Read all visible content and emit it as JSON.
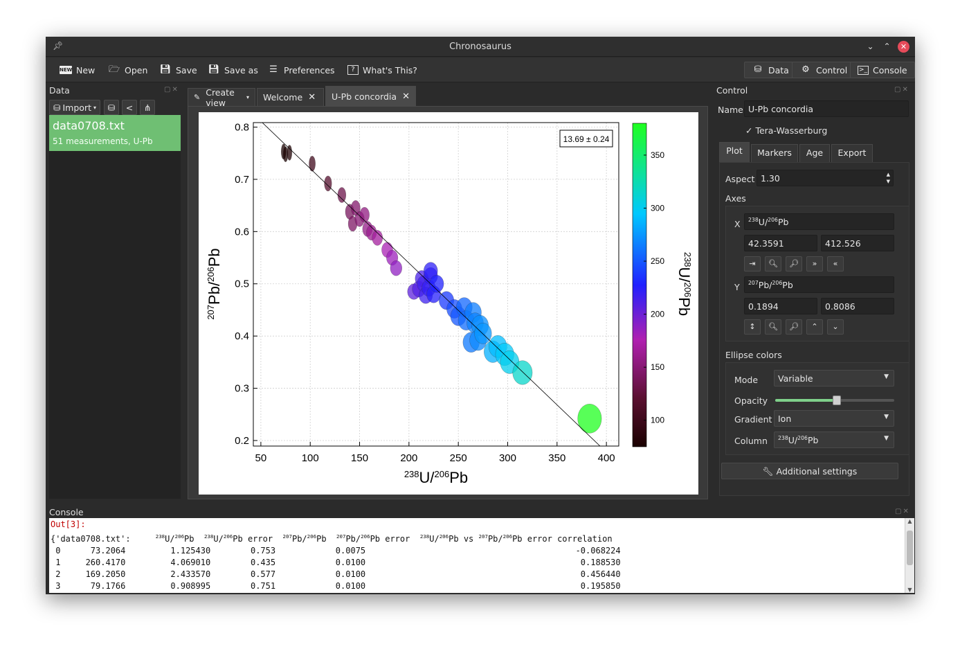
{
  "window": {
    "title": "Chronosaurus"
  },
  "toolbar": {
    "new": "New",
    "open": "Open",
    "save": "Save",
    "save_as": "Save as",
    "preferences": "Preferences",
    "whats_this": "What's This?",
    "data": "Data",
    "control": "Control",
    "console": "Console"
  },
  "data_panel": {
    "title": "Data",
    "import": "Import",
    "items": [
      {
        "name": "data0708.txt",
        "subtitle": "51 measurements, U-Pb"
      }
    ]
  },
  "tabs": [
    {
      "label": "Create view"
    },
    {
      "label": "Welcome"
    },
    {
      "label": "U-Pb concordia"
    }
  ],
  "control": {
    "title": "Control",
    "name_label": "Name",
    "name_value": "U-Pb concordia",
    "tera_wasserburg": "Tera-Wasserburg",
    "tabs": [
      "Plot",
      "Markers",
      "Age",
      "Export"
    ],
    "aspect_label": "Aspect",
    "aspect_value": "1.30",
    "axes_label": "Axes",
    "x_label": "X",
    "x_min": "42.3591",
    "x_max": "412.526",
    "y_label": "Y",
    "y_min": "0.1894",
    "y_max": "0.8086",
    "ellipse_colors": "Ellipse colors",
    "mode_label": "Mode",
    "mode_value": "Variable",
    "opacity_label": "Opacity",
    "opacity_value": 0.52,
    "gradient_label": "Gradient",
    "gradient_value": "Ion",
    "column_label": "Column",
    "additional_settings": "Additional settings"
  },
  "console": {
    "title": "Console",
    "prompt": "Out[3]:",
    "lines": [
      " 0      73.2064         1.125430        0.753            0.0075                                          -0.068224",
      " 1     260.4170         4.069010        0.435            0.0100                                           0.188530",
      " 2     169.2050         2.433570        0.577            0.0100                                           0.456440",
      " 3      79.1766         0.908995        0.751            0.0100                                           0.195850"
    ]
  },
  "chart_data": {
    "type": "scatter",
    "annotation": "13.69 ± 0.24",
    "xlim": [
      42.3591,
      412.526
    ],
    "ylim": [
      0.1894,
      0.8086
    ],
    "xticks": [
      50,
      100,
      150,
      200,
      250,
      300,
      350,
      400
    ],
    "yticks": [
      0.2,
      0.3,
      0.4,
      0.5,
      0.6,
      0.7,
      0.8
    ],
    "colorbar_ticks": [
      100,
      150,
      200,
      250,
      300,
      350
    ],
    "colorbar_range": [
      75,
      380
    ],
    "grid": true,
    "concordia_line": {
      "x": [
        42.3591,
        412.526
      ],
      "y": [
        0.825,
        0.155
      ]
    },
    "points": [
      {
        "x": 73,
        "y": 0.753,
        "c": 73
      },
      {
        "x": 75,
        "y": 0.748,
        "c": 75
      },
      {
        "x": 79,
        "y": 0.751,
        "c": 79
      },
      {
        "x": 102,
        "y": 0.73,
        "c": 102
      },
      {
        "x": 118,
        "y": 0.692,
        "c": 118
      },
      {
        "x": 132,
        "y": 0.67,
        "c": 132
      },
      {
        "x": 140,
        "y": 0.638,
        "c": 140
      },
      {
        "x": 143,
        "y": 0.615,
        "c": 143
      },
      {
        "x": 146,
        "y": 0.645,
        "c": 146
      },
      {
        "x": 150,
        "y": 0.624,
        "c": 150
      },
      {
        "x": 155,
        "y": 0.632,
        "c": 155
      },
      {
        "x": 158,
        "y": 0.605,
        "c": 158
      },
      {
        "x": 162,
        "y": 0.598,
        "c": 162
      },
      {
        "x": 168,
        "y": 0.588,
        "c": 168
      },
      {
        "x": 178,
        "y": 0.565,
        "c": 178
      },
      {
        "x": 183,
        "y": 0.55,
        "c": 183
      },
      {
        "x": 187,
        "y": 0.53,
        "c": 187
      },
      {
        "x": 205,
        "y": 0.485,
        "c": 205
      },
      {
        "x": 210,
        "y": 0.49,
        "c": 210
      },
      {
        "x": 213,
        "y": 0.51,
        "c": 213
      },
      {
        "x": 215,
        "y": 0.5,
        "c": 215
      },
      {
        "x": 217,
        "y": 0.478,
        "c": 217
      },
      {
        "x": 220,
        "y": 0.492,
        "c": 220
      },
      {
        "x": 222,
        "y": 0.515,
        "c": 222
      },
      {
        "x": 222,
        "y": 0.525,
        "c": 222
      },
      {
        "x": 225,
        "y": 0.48,
        "c": 225
      },
      {
        "x": 228,
        "y": 0.5,
        "c": 228
      },
      {
        "x": 238,
        "y": 0.468,
        "c": 238
      },
      {
        "x": 246,
        "y": 0.452,
        "c": 246
      },
      {
        "x": 250,
        "y": 0.438,
        "c": 250
      },
      {
        "x": 256,
        "y": 0.455,
        "c": 256
      },
      {
        "x": 258,
        "y": 0.43,
        "c": 258
      },
      {
        "x": 265,
        "y": 0.445,
        "c": 265
      },
      {
        "x": 267,
        "y": 0.425,
        "c": 267
      },
      {
        "x": 272,
        "y": 0.42,
        "c": 272
      },
      {
        "x": 263,
        "y": 0.388,
        "c": 263
      },
      {
        "x": 270,
        "y": 0.392,
        "c": 270
      },
      {
        "x": 275,
        "y": 0.405,
        "c": 275
      },
      {
        "x": 285,
        "y": 0.37,
        "c": 285
      },
      {
        "x": 290,
        "y": 0.38,
        "c": 290
      },
      {
        "x": 297,
        "y": 0.365,
        "c": 297
      },
      {
        "x": 302,
        "y": 0.35,
        "c": 302
      },
      {
        "x": 315,
        "y": 0.33,
        "c": 315
      },
      {
        "x": 383,
        "y": 0.242,
        "c": 383
      }
    ]
  }
}
